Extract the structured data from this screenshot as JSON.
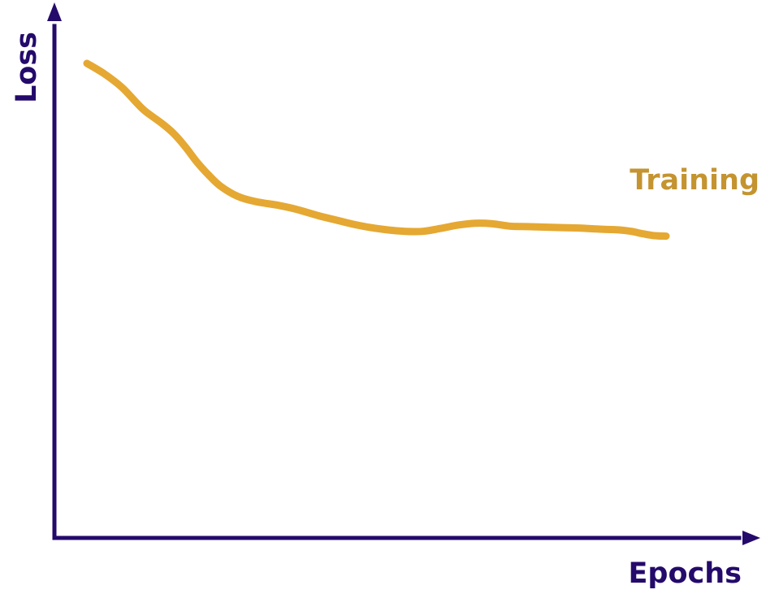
{
  "chart_data": {
    "type": "line",
    "title": "",
    "xlabel": "Epochs",
    "ylabel": "Loss",
    "xlim": [
      0,
      100
    ],
    "ylim": [
      0,
      100
    ],
    "grid": false,
    "axis_ticks": false,
    "series": [
      {
        "name": "Training",
        "color": "#E5A832",
        "label_color": "#C49430",
        "x": [
          0,
          3,
          6,
          8.5,
          10,
          13,
          15,
          17,
          19,
          21,
          23,
          26,
          29,
          33,
          36,
          40,
          43,
          46,
          49,
          52,
          55,
          58,
          61,
          64,
          67,
          70,
          73,
          76,
          79,
          82,
          85,
          88,
          90,
          92,
          94,
          96,
          98,
          100
        ],
        "y": [
          100,
          97.8,
          95,
          91.8,
          90,
          87.3,
          85.2,
          82.4,
          79.2,
          76.5,
          74.2,
          72.0,
          70.9,
          70.1,
          69.3,
          67.9,
          67.0,
          66.1,
          65.4,
          64.9,
          64.6,
          64.6,
          65.2,
          65.9,
          66.3,
          66.2,
          65.7,
          65.6,
          65.5,
          65.4,
          65.3,
          65.1,
          65.0,
          64.9,
          64.6,
          64.1,
          63.7,
          63.6
        ]
      }
    ]
  },
  "colors": {
    "axis": "#240A6B",
    "series": "#E5A832",
    "series_label": "#C49430",
    "background": "#FFFFFF"
  }
}
